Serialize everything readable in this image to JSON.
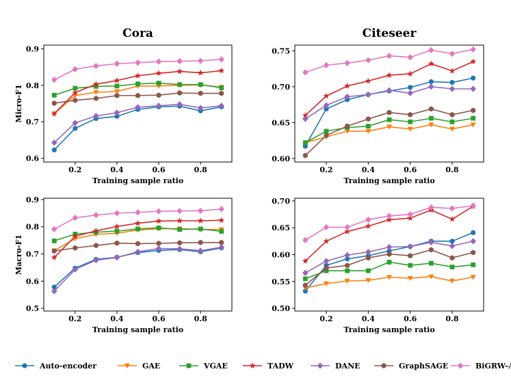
{
  "chart_data": [
    {
      "type": "line",
      "title": "Cora",
      "xlabel": "Training sample ratio",
      "ylabel": "Micro-F1",
      "xlim": [
        0.05,
        0.95
      ],
      "ylim": [
        0.59,
        0.91
      ],
      "xticks": [
        0.2,
        0.4,
        0.6,
        0.8
      ],
      "xtick_labels": [
        "0.2",
        "0.4",
        "0.6",
        "0.8"
      ],
      "yticks": [
        0.6,
        0.7,
        0.8,
        0.9
      ],
      "ytick_labels": [
        "0.6",
        "0.7",
        "0.8",
        "0.9"
      ],
      "x": [
        0.1,
        0.2,
        0.3,
        0.4,
        0.5,
        0.6,
        0.7,
        0.8,
        0.9
      ],
      "series": [
        {
          "name": "Auto-encoder",
          "values": [
            0.623,
            0.682,
            0.709,
            0.715,
            0.734,
            0.741,
            0.743,
            0.73,
            0.741
          ]
        },
        {
          "name": "GAE",
          "values": [
            0.722,
            0.772,
            0.781,
            0.783,
            0.798,
            0.798,
            0.8,
            0.801,
            0.795
          ]
        },
        {
          "name": "VGAE",
          "values": [
            0.773,
            0.792,
            0.797,
            0.798,
            0.804,
            0.806,
            0.802,
            0.802,
            0.793
          ]
        },
        {
          "name": "TADW",
          "values": [
            0.722,
            0.78,
            0.803,
            0.813,
            0.826,
            0.833,
            0.838,
            0.834,
            0.84
          ]
        },
        {
          "name": "DANE",
          "values": [
            0.643,
            0.697,
            0.716,
            0.725,
            0.74,
            0.744,
            0.748,
            0.738,
            0.744
          ]
        },
        {
          "name": "GraphSAGE",
          "values": [
            0.751,
            0.759,
            0.764,
            0.772,
            0.772,
            0.773,
            0.779,
            0.778,
            0.778
          ]
        },
        {
          "name": "BiGRW-AT",
          "values": [
            0.815,
            0.844,
            0.853,
            0.859,
            0.862,
            0.865,
            0.866,
            0.867,
            0.871
          ]
        }
      ]
    },
    {
      "type": "line",
      "title": "Citeseer",
      "xlabel": "Training sample ratio",
      "ylabel": "",
      "xlim": [
        0.05,
        0.95
      ],
      "ylim": [
        0.595,
        0.758
      ],
      "xticks": [
        0.2,
        0.4,
        0.6,
        0.8
      ],
      "xtick_labels": [
        "0.2",
        "0.4",
        "0.6",
        "0.8"
      ],
      "yticks": [
        0.6,
        0.65,
        0.7,
        0.75
      ],
      "ytick_labels": [
        "0.60",
        "0.65",
        "0.70",
        "0.75"
      ],
      "x": [
        0.1,
        0.2,
        0.3,
        0.4,
        0.5,
        0.6,
        0.7,
        0.8,
        0.9
      ],
      "series": [
        {
          "name": "Auto-encoder",
          "values": [
            0.617,
            0.669,
            0.682,
            0.689,
            0.694,
            0.699,
            0.707,
            0.706,
            0.712
          ]
        },
        {
          "name": "GAE",
          "values": [
            0.622,
            0.63,
            0.638,
            0.638,
            0.644,
            0.641,
            0.647,
            0.641,
            0.647
          ]
        },
        {
          "name": "VGAE",
          "values": [
            0.622,
            0.638,
            0.643,
            0.645,
            0.654,
            0.651,
            0.656,
            0.651,
            0.656
          ]
        },
        {
          "name": "TADW",
          "values": [
            0.66,
            0.687,
            0.701,
            0.708,
            0.716,
            0.718,
            0.732,
            0.722,
            0.735
          ]
        },
        {
          "name": "DANE",
          "values": [
            0.655,
            0.674,
            0.686,
            0.689,
            0.695,
            0.691,
            0.7,
            0.697,
            0.697
          ]
        },
        {
          "name": "GraphSAGE",
          "values": [
            0.604,
            0.632,
            0.645,
            0.655,
            0.664,
            0.661,
            0.669,
            0.661,
            0.667
          ]
        },
        {
          "name": "BiGRW-AT",
          "values": [
            0.72,
            0.73,
            0.733,
            0.737,
            0.743,
            0.741,
            0.751,
            0.746,
            0.752
          ]
        }
      ]
    },
    {
      "type": "line",
      "title": "",
      "xlabel": "Training sample ratio",
      "ylabel": "Macro-F1",
      "xlim": [
        0.05,
        0.95
      ],
      "ylim": [
        0.49,
        0.905
      ],
      "xticks": [
        0.2,
        0.4,
        0.6,
        0.8
      ],
      "xtick_labels": [
        "0.2",
        "0.4",
        "0.6",
        "0.8"
      ],
      "yticks": [
        0.5,
        0.6,
        0.7,
        0.8,
        0.9
      ],
      "ytick_labels": [
        "0.5",
        "0.6",
        "0.7",
        "0.8",
        "0.9"
      ],
      "x": [
        0.1,
        0.2,
        0.3,
        0.4,
        0.5,
        0.6,
        0.7,
        0.8,
        0.9
      ],
      "series": [
        {
          "name": "Auto-encoder",
          "values": [
            0.578,
            0.648,
            0.68,
            0.688,
            0.705,
            0.713,
            0.716,
            0.708,
            0.722
          ]
        },
        {
          "name": "GAE",
          "values": [
            0.712,
            0.756,
            0.772,
            0.776,
            0.788,
            0.793,
            0.793,
            0.79,
            0.79
          ]
        },
        {
          "name": "VGAE",
          "values": [
            0.748,
            0.773,
            0.78,
            0.784,
            0.792,
            0.796,
            0.79,
            0.792,
            0.783
          ]
        },
        {
          "name": "TADW",
          "values": [
            0.687,
            0.765,
            0.785,
            0.801,
            0.813,
            0.821,
            0.822,
            0.822,
            0.824
          ]
        },
        {
          "name": "DANE",
          "values": [
            0.563,
            0.643,
            0.677,
            0.687,
            0.708,
            0.72,
            0.719,
            0.712,
            0.725
          ]
        },
        {
          "name": "GraphSAGE",
          "values": [
            0.711,
            0.722,
            0.731,
            0.74,
            0.738,
            0.739,
            0.741,
            0.742,
            0.742
          ]
        },
        {
          "name": "BiGRW-AT",
          "values": [
            0.791,
            0.833,
            0.843,
            0.85,
            0.853,
            0.857,
            0.858,
            0.859,
            0.865
          ]
        }
      ]
    },
    {
      "type": "line",
      "title": "",
      "xlabel": "Training sample ratio",
      "ylabel": "",
      "xlim": [
        0.05,
        0.95
      ],
      "ylim": [
        0.495,
        0.705
      ],
      "xticks": [
        0.2,
        0.4,
        0.6,
        0.8
      ],
      "xtick_labels": [
        "0.2",
        "0.4",
        "0.6",
        "0.8"
      ],
      "yticks": [
        0.5,
        0.55,
        0.6,
        0.65,
        0.7
      ],
      "ytick_labels": [
        "0.50",
        "0.55",
        "0.60",
        "0.65",
        "0.70"
      ],
      "x": [
        0.1,
        0.2,
        0.3,
        0.4,
        0.5,
        0.6,
        0.7,
        0.8,
        0.9
      ],
      "series": [
        {
          "name": "Auto-encoder",
          "values": [
            0.532,
            0.58,
            0.592,
            0.598,
            0.607,
            0.615,
            0.625,
            0.625,
            0.641
          ]
        },
        {
          "name": "GAE",
          "values": [
            0.538,
            0.546,
            0.551,
            0.552,
            0.558,
            0.556,
            0.559,
            0.551,
            0.558
          ]
        },
        {
          "name": "VGAE",
          "values": [
            0.555,
            0.57,
            0.57,
            0.57,
            0.586,
            0.58,
            0.584,
            0.577,
            0.581
          ]
        },
        {
          "name": "TADW",
          "values": [
            0.588,
            0.625,
            0.643,
            0.653,
            0.665,
            0.668,
            0.683,
            0.666,
            0.69
          ]
        },
        {
          "name": "DANE",
          "values": [
            0.566,
            0.588,
            0.599,
            0.605,
            0.614,
            0.615,
            0.623,
            0.616,
            0.625
          ]
        },
        {
          "name": "GraphSAGE",
          "values": [
            0.543,
            0.575,
            0.58,
            0.594,
            0.601,
            0.598,
            0.609,
            0.594,
            0.604
          ]
        },
        {
          "name": "BiGRW-AT",
          "values": [
            0.627,
            0.651,
            0.651,
            0.665,
            0.672,
            0.675,
            0.688,
            0.686,
            0.691
          ]
        }
      ]
    }
  ],
  "legend": [
    {
      "name": "Auto-encoder",
      "color": "#1f77b4",
      "marker": "circle"
    },
    {
      "name": "GAE",
      "color": "#ff7f0e",
      "marker": "triangle-down"
    },
    {
      "name": "VGAE",
      "color": "#2ca02c",
      "marker": "square"
    },
    {
      "name": "TADW",
      "color": "#d62728",
      "marker": "star"
    },
    {
      "name": "DANE",
      "color": "#9467bd",
      "marker": "diamond"
    },
    {
      "name": "GraphSAGE",
      "color": "#8c564b",
      "marker": "hexagon"
    },
    {
      "name": "BiGRW-AT",
      "color": "#e377c2",
      "marker": "diamond"
    }
  ]
}
